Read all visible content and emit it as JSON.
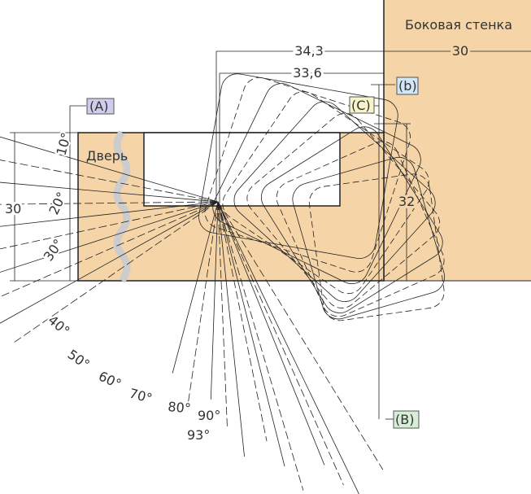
{
  "labels": {
    "side_wall": "Боковая стенка",
    "side_wall_thickness": "30",
    "door": "Дверь",
    "door_thickness": "30",
    "depth": "32"
  },
  "dimensions": {
    "outer": "34,3",
    "inner": "33,6"
  },
  "markers": {
    "a": "(A)",
    "b": "(b)",
    "c": "(C)",
    "b_upper": "(B)"
  },
  "angles": [
    "10°",
    "20°",
    "30°",
    "40°",
    "50°",
    "60°",
    "70°",
    "80°",
    "90°",
    "93°"
  ]
}
